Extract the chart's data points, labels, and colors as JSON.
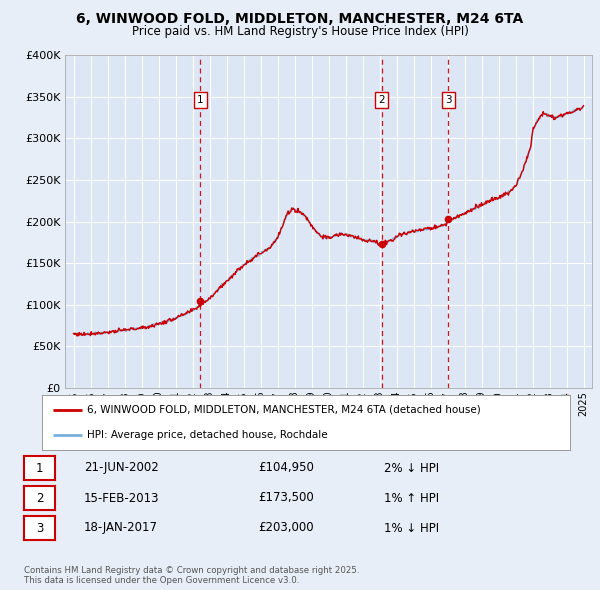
{
  "title": "6, WINWOOD FOLD, MIDDLETON, MANCHESTER, M24 6TA",
  "subtitle": "Price paid vs. HM Land Registry's House Price Index (HPI)",
  "legend_label_red": "6, WINWOOD FOLD, MIDDLETON, MANCHESTER, M24 6TA (detached house)",
  "legend_label_blue": "HPI: Average price, detached house, Rochdale",
  "transactions": [
    {
      "label": "1",
      "date": "21-JUN-2002",
      "year": 2002.47,
      "price": 104950,
      "pct": "2%",
      "dir": "↓"
    },
    {
      "label": "2",
      "date": "15-FEB-2013",
      "year": 2013.12,
      "price": 173500,
      "pct": "1%",
      "dir": "↑"
    },
    {
      "label": "3",
      "date": "18-JAN-2017",
      "year": 2017.04,
      "price": 203000,
      "pct": "1%",
      "dir": "↓"
    }
  ],
  "footnote": "Contains HM Land Registry data © Crown copyright and database right 2025.\nThis data is licensed under the Open Government Licence v3.0.",
  "bg_color": "#e8eef7",
  "plot_bg_color": "#dce6f5",
  "grid_color": "#ffffff",
  "red_color": "#cc0000",
  "blue_color": "#7aafdd",
  "dashed_color": "#cc0000",
  "ylim_max": 400000,
  "yticks": [
    0,
    50000,
    100000,
    150000,
    200000,
    250000,
    300000,
    350000,
    400000
  ],
  "xlim_min": 1994.5,
  "xlim_max": 2025.5,
  "xticks": [
    1995,
    1996,
    1997,
    1998,
    1999,
    2000,
    2001,
    2002,
    2003,
    2004,
    2005,
    2006,
    2007,
    2008,
    2009,
    2010,
    2011,
    2012,
    2013,
    2014,
    2015,
    2016,
    2017,
    2018,
    2019,
    2020,
    2021,
    2022,
    2023,
    2024,
    2025
  ],
  "hpi_key_years": [
    1995,
    1995.5,
    1996,
    1996.5,
    1997,
    1997.5,
    1998,
    1998.5,
    1999,
    1999.5,
    2000,
    2000.5,
    2001,
    2001.5,
    2002,
    2002.5,
    2003,
    2003.5,
    2004,
    2004.5,
    2005,
    2005.5,
    2006,
    2006.5,
    2007,
    2007.3,
    2007.6,
    2007.9,
    2008.3,
    2008.7,
    2009,
    2009.3,
    2009.6,
    2010,
    2010.4,
    2010.8,
    2011,
    2011.4,
    2011.8,
    2012,
    2012.3,
    2012.6,
    2012.9,
    2013,
    2013.3,
    2013.7,
    2014,
    2014.5,
    2015,
    2015.5,
    2016,
    2016.3,
    2016.6,
    2016.9,
    2017,
    2017.5,
    2018,
    2018.5,
    2019,
    2019.5,
    2020,
    2020.3,
    2020.6,
    2021,
    2021.3,
    2021.6,
    2021.9,
    2022,
    2022.3,
    2022.6,
    2022.9,
    2023,
    2023.3,
    2023.6,
    2023.9,
    2024,
    2024.3,
    2024.6,
    2024.9,
    2025
  ],
  "hpi_key_vals": [
    65000,
    64500,
    65500,
    66000,
    67000,
    68000,
    69500,
    71000,
    72000,
    74000,
    77000,
    80000,
    84000,
    88000,
    93000,
    100000,
    108000,
    118000,
    128000,
    138000,
    148000,
    155000,
    162000,
    168000,
    180000,
    195000,
    210000,
    215000,
    212000,
    205000,
    195000,
    188000,
    182000,
    180000,
    183000,
    185000,
    184000,
    182000,
    180000,
    178000,
    177000,
    176000,
    174000,
    172000,
    174000,
    178000,
    182000,
    186000,
    188000,
    190000,
    192000,
    193000,
    195000,
    197000,
    200000,
    205000,
    210000,
    215000,
    220000,
    225000,
    228000,
    232000,
    235000,
    242000,
    255000,
    272000,
    290000,
    308000,
    322000,
    330000,
    328000,
    327000,
    325000,
    326000,
    328000,
    330000,
    332000,
    334000,
    336000,
    338000
  ]
}
